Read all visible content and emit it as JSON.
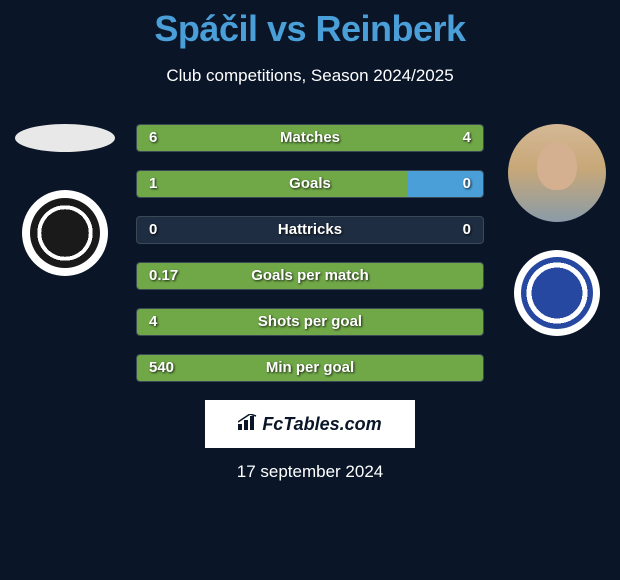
{
  "title": "Spáčil vs Reinberk",
  "subtitle": "Club competitions, Season 2024/2025",
  "date": "17 september 2024",
  "watermark": "FcTables.com",
  "colors": {
    "background": "#0a1628",
    "title_color": "#4a9fd8",
    "text_color": "#ffffff",
    "left_fill": "#70a848",
    "right_fill": "#4a9fd8",
    "bar_bg": "#1e2d42",
    "bar_border": "#3a4858"
  },
  "player_left": {
    "name": "Spáčil",
    "club_badge": "hradec-kralove"
  },
  "player_right": {
    "name": "Reinberk",
    "club_badge": "slovacko"
  },
  "stats": [
    {
      "label": "Matches",
      "left_val": "6",
      "right_val": "4",
      "left_pct": 100,
      "right_pct": 0
    },
    {
      "label": "Goals",
      "left_val": "1",
      "right_val": "0",
      "left_pct": 78,
      "right_pct": 22
    },
    {
      "label": "Hattricks",
      "left_val": "0",
      "right_val": "0",
      "left_pct": 0,
      "right_pct": 0
    },
    {
      "label": "Goals per match",
      "left_val": "0.17",
      "right_val": "",
      "left_pct": 100,
      "right_pct": 0
    },
    {
      "label": "Shots per goal",
      "left_val": "4",
      "right_val": "",
      "left_pct": 100,
      "right_pct": 0
    },
    {
      "label": "Min per goal",
      "left_val": "540",
      "right_val": "",
      "left_pct": 100,
      "right_pct": 0
    }
  ]
}
